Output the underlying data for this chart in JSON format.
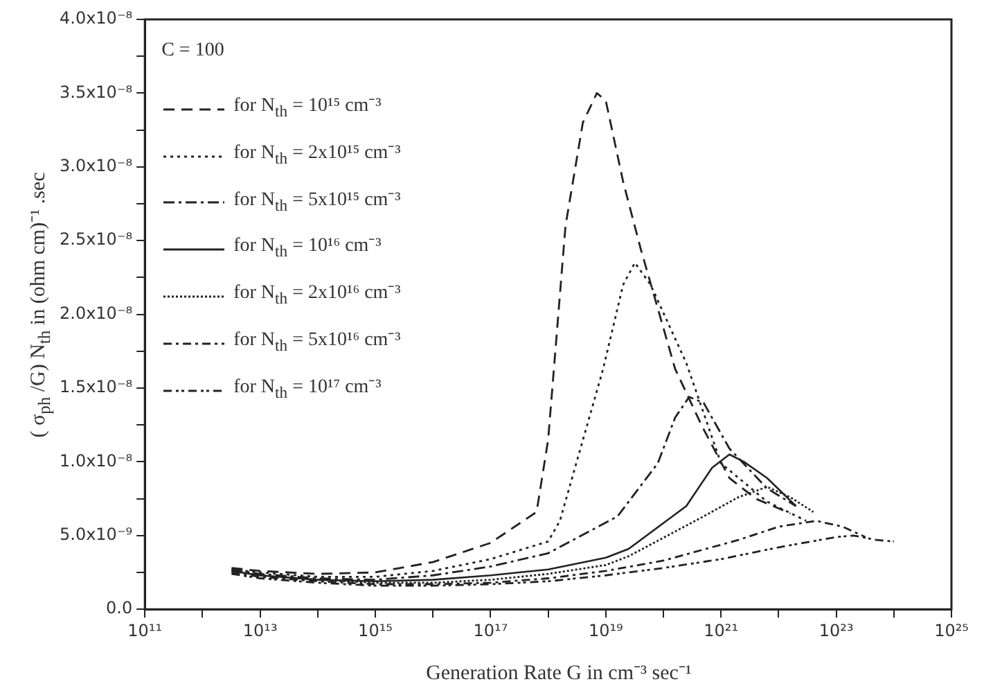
{
  "chart_data": {
    "type": "line",
    "xlabel": "Generation Rate G in cm⁻³ sec⁻¹",
    "ylabel": "( σ$_{ph}$ /G) N$_{th}$ in (ohm cm)⁻¹ .sec",
    "annotations": [
      "C = 100"
    ],
    "log": "x",
    "grid": false,
    "legend": "top left",
    "marker": "none",
    "xlim": [
      100000000000.0,
      1e+25
    ],
    "xticks": [
      {
        "value": 100000000000.0,
        "label": "10¹¹"
      },
      {
        "value": 1000000000000.0,
        "label": null
      },
      {
        "value": 10000000000000.0,
        "label": "10¹³"
      },
      {
        "value": 100000000000000.0,
        "label": null
      },
      {
        "value": 1000000000000000.0,
        "label": "10¹⁵"
      },
      {
        "value": 1e+16,
        "label": null
      },
      {
        "value": 1e+17,
        "label": "10¹⁷"
      },
      {
        "value": 1e+18,
        "label": null
      },
      {
        "value": 1e+19,
        "label": "10¹⁹"
      },
      {
        "value": 1e+20,
        "label": null
      },
      {
        "value": 1e+21,
        "label": "10²¹"
      },
      {
        "value": 1e+22,
        "label": null
      },
      {
        "value": 1e+23,
        "label": "10²³"
      },
      {
        "value": 1e+24,
        "label": null
      },
      {
        "value": 1e+25,
        "label": "10²⁵"
      }
    ],
    "ylim": [
      0,
      4e-08
    ],
    "yticks": [
      {
        "value": 0,
        "label": "0.0"
      },
      {
        "value": 2.5e-09,
        "label": null
      },
      {
        "value": 5e-09,
        "label": "5.0x10⁻⁹"
      },
      {
        "value": 7.5e-09,
        "label": null
      },
      {
        "value": 1e-08,
        "label": "1.0x10⁻⁸"
      },
      {
        "value": 1.25e-08,
        "label": null
      },
      {
        "value": 1.5e-08,
        "label": "1.5x10⁻⁸"
      },
      {
        "value": 1.75e-08,
        "label": null
      },
      {
        "value": 2e-08,
        "label": "2.0x10⁻⁸"
      },
      {
        "value": 2.25e-08,
        "label": null
      },
      {
        "value": 2.5e-08,
        "label": "2.5x10⁻⁸"
      },
      {
        "value": 2.75e-08,
        "label": null
      },
      {
        "value": 3e-08,
        "label": "3.0x10⁻⁸"
      },
      {
        "value": 3.25e-08,
        "label": null
      },
      {
        "value": 3.5e-08,
        "label": "3.5x10⁻⁸"
      },
      {
        "value": 3.75e-08,
        "label": null
      },
      {
        "value": 4e-08,
        "label": "4.0x10⁻⁸"
      }
    ],
    "series": [
      {
        "name": "for N$_{th}$ = 10¹⁵ cm⁻³",
        "color": "#222222",
        "line_style": "dashed",
        "x": [
          3200000000000.0,
          10000000000000.0,
          100000000000000.0,
          1000000000000000.0,
          1e+16,
          1e+17,
          6.3e+17,
          1e+18,
          2e+18,
          4e+18,
          7e+18,
          1e+19,
          2e+19,
          4e+19,
          1.6e+20,
          4.7e+20,
          1.4e+21,
          4e+21,
          1.6e+22
        ],
        "values": [
          2.8e-09,
          2.6e-09,
          2.4e-09,
          2.5e-09,
          3.2e-09,
          4.5e-09,
          6.6e-09,
          1.15e-08,
          2.6e-08,
          3.3e-08,
          3.5e-08,
          3.45e-08,
          2.9e-08,
          2.45e-08,
          1.63e-08,
          1.24e-08,
          8.9e-09,
          7.5e-09,
          6.5e-09
        ]
      },
      {
        "name": "for N$_{th}$ = 2x10¹⁵ cm⁻³",
        "color": "#222222",
        "line_style": "dotted",
        "x": [
          3200000000000.0,
          10000000000000.0,
          100000000000000.0,
          1000000000000000.0,
          1e+16,
          1e+17,
          1e+18,
          1.6e+18,
          9e+18,
          2e+19,
          3.2e+19,
          6e+19,
          2.5e+20,
          1e+21,
          6.3e+21,
          3e+22
        ],
        "values": [
          2.7e-09,
          2.5e-09,
          2.2e-09,
          2.2e-09,
          2.6e-09,
          3.4e-09,
          4.6e-09,
          6e-09,
          1.63e-08,
          2.2e-08,
          2.35e-08,
          2.2e-08,
          1.67e-08,
          9.9e-09,
          7.3e-09,
          6e-09
        ]
      },
      {
        "name": "for N$_{th}$ = 5x10¹⁵ cm⁻³",
        "color": "#222222",
        "line_style": "dashed",
        "x": [
          3200000000000.0,
          10000000000000.0,
          100000000000000.0,
          1000000000000000.0,
          1e+16,
          1e+17,
          1e+18,
          1.6e+19,
          8e+19,
          1.6e+20,
          2.8e+20,
          5e+20,
          1.4e+21,
          6.3e+21,
          2e+22
        ],
        "values": [
          2.7e-09,
          2.4e-09,
          2.1e-09,
          2e-09,
          2.3e-09,
          2.9e-09,
          3.8e-09,
          6.3e-09,
          9.9e-09,
          1.3e-08,
          1.44e-08,
          1.4e-08,
          1.09e-08,
          8.2e-09,
          7e-09
        ]
      },
      {
        "name": "for N$_{th}$ = 10¹⁶ cm⁻³",
        "color": "#222222",
        "line_style": "solid",
        "x": [
          3200000000000.0,
          10000000000000.0,
          100000000000000.0,
          1000000000000000.0,
          1e+16,
          1e+17,
          1e+18,
          1e+19,
          2.5e+19,
          2.5e+20,
          7e+20,
          1.4e+21,
          2.5e+21,
          6.3e+21,
          2e+22
        ],
        "values": [
          2.6e-09,
          2.3e-09,
          2e-09,
          1.9e-09,
          2e-09,
          2.3e-09,
          2.7e-09,
          3.5e-09,
          4.1e-09,
          7e-09,
          9.6e-09,
          1.05e-08,
          1e-08,
          8.9e-09,
          7e-09
        ]
      },
      {
        "name": "for N$_{th}$ = 2x10¹⁶ cm⁻³",
        "color": "#222222",
        "line_style": "dotted",
        "x": [
          3200000000000.0,
          10000000000000.0,
          100000000000000.0,
          1000000000000000.0,
          1e+16,
          1e+17,
          1e+18,
          1e+19,
          2.5e+19,
          5e+20,
          2e+21,
          6.3e+21,
          1.6e+22,
          4e+22
        ],
        "values": [
          2.6e-09,
          2.3e-09,
          2e-09,
          1.8e-09,
          1.8e-09,
          2e-09,
          2.4e-09,
          3e-09,
          3.6e-09,
          6.3e-09,
          7.6e-09,
          8.3e-09,
          7.6e-09,
          6.6e-09
        ]
      },
      {
        "name": "for N$_{th}$ = 5x10¹⁶ cm⁻³",
        "color": "#222222",
        "line_style": "dashed",
        "x": [
          3200000000000.0,
          10000000000000.0,
          100000000000000.0,
          1000000000000000.0,
          1e+16,
          1e+17,
          1e+18,
          1e+19,
          1e+20,
          2e+21,
          1e+22,
          4.5e+22,
          1.3e+23,
          3.2e+23
        ],
        "values": [
          2.5e-09,
          2.2e-09,
          1.9e-09,
          1.7e-09,
          1.7e-09,
          1.8e-09,
          2.1e-09,
          2.6e-09,
          3.3e-09,
          4.7e-09,
          5.6e-09,
          6e-09,
          5.6e-09,
          4.9e-09
        ]
      },
      {
        "name": "for N$_{th}$ = 10¹⁷ cm⁻³",
        "color": "#222222",
        "line_style": "dashed",
        "x": [
          3200000000000.0,
          10000000000000.0,
          100000000000000.0,
          1000000000000000.0,
          1e+16,
          1e+17,
          1e+18,
          1e+19,
          1e+20,
          1e+21,
          1e+22,
          1e+23,
          2e+23,
          5e+23,
          1e+24
        ],
        "values": [
          2.4e-09,
          2.1e-09,
          1.8e-09,
          1.6e-09,
          1.6e-09,
          1.7e-09,
          1.9e-09,
          2.3e-09,
          2.8e-09,
          3.4e-09,
          4.2e-09,
          4.9e-09,
          5e-09,
          4.7e-09,
          4.6e-09
        ]
      }
    ]
  }
}
